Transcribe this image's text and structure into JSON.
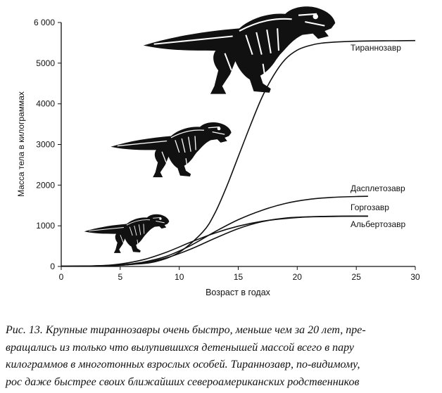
{
  "chart_data": {
    "type": "line",
    "xlabel": "Возраст в годах",
    "ylabel": "Масса тела в килограммах",
    "xlim": [
      0,
      30
    ],
    "ylim": [
      0,
      6000
    ],
    "x_ticks": [
      "0",
      "5",
      "10",
      "15",
      "20",
      "25",
      "30"
    ],
    "y_ticks": [
      "0",
      "1000",
      "2000",
      "3000",
      "4000",
      "5000",
      "6 000"
    ],
    "grid": false,
    "series": [
      {
        "name": "Тираннозавр",
        "x": [
          0,
          2,
          4,
          6,
          8,
          10,
          12,
          13,
          14,
          15,
          16,
          17,
          18,
          19,
          20,
          21,
          22,
          24,
          26,
          28,
          30
        ],
        "y": [
          5,
          10,
          20,
          50,
          120,
          350,
          850,
          1300,
          1950,
          2700,
          3450,
          4150,
          4700,
          5100,
          5320,
          5430,
          5490,
          5530,
          5545,
          5550,
          5555
        ]
      },
      {
        "name": "Дасплетозавр",
        "x": [
          0,
          3,
          5,
          7,
          9,
          11,
          13,
          15,
          17,
          19,
          21,
          23,
          25,
          26
        ],
        "y": [
          5,
          15,
          40,
          110,
          260,
          520,
          850,
          1150,
          1380,
          1550,
          1650,
          1700,
          1720,
          1725
        ]
      },
      {
        "name": "Горгозавр",
        "x": [
          0,
          3,
          5,
          7,
          9,
          11,
          13,
          15,
          17,
          19,
          21,
          23,
          25,
          26
        ],
        "y": [
          5,
          15,
          60,
          170,
          360,
          600,
          820,
          990,
          1110,
          1180,
          1220,
          1235,
          1240,
          1240
        ]
      },
      {
        "name": "Альбертозавр",
        "x": [
          0,
          3,
          5,
          7,
          9,
          11,
          13,
          15,
          17,
          19,
          21,
          23,
          25,
          26
        ],
        "y": [
          5,
          10,
          30,
          90,
          220,
          430,
          690,
          930,
          1100,
          1190,
          1220,
          1230,
          1235,
          1235
        ]
      }
    ]
  },
  "caption": {
    "lines": [
      "Рис. 13. Крупные тираннозавры очень быстро, меньше чем за 20 лет, пре-",
      "вращались из только что вылупившихся детенышей массой всего в пару",
      "килограммов в многотонных взрослых особей. Тираннозавр, по-видимому,",
      "рос даже быстрее своих ближайших североамериканских родственников"
    ]
  },
  "illustration_icons": [
    "tyrannosaurus-skeleton-icon",
    "daspletosaurus-skeleton-icon",
    "juvenile-tyrannosaur-skeleton-icon"
  ]
}
